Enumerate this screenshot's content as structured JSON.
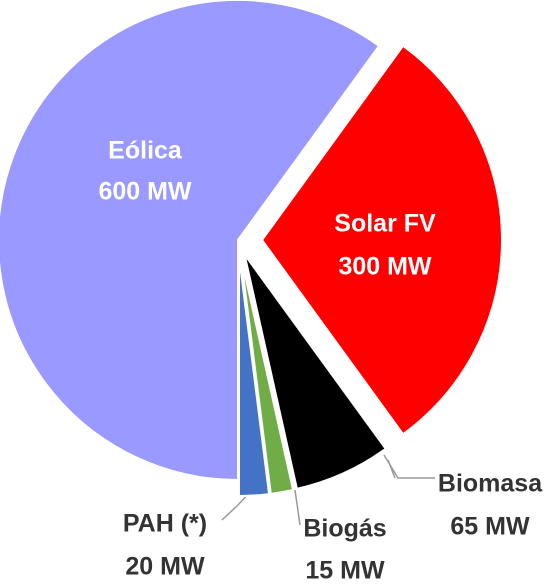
{
  "chart_data": {
    "type": "pie",
    "categories": [
      "Eólica",
      "Solar FV",
      "Biomasa",
      "Biogás",
      "PAH (*)"
    ],
    "values": [
      600,
      300,
      65,
      15,
      20
    ],
    "value_labels": [
      "600 MW",
      "300 MW",
      "65 MW",
      "15 MW",
      "20 MW"
    ],
    "colors": [
      "#9999ff",
      "#ff0000",
      "#000000",
      "#70ad47",
      "#4472c4"
    ]
  }
}
